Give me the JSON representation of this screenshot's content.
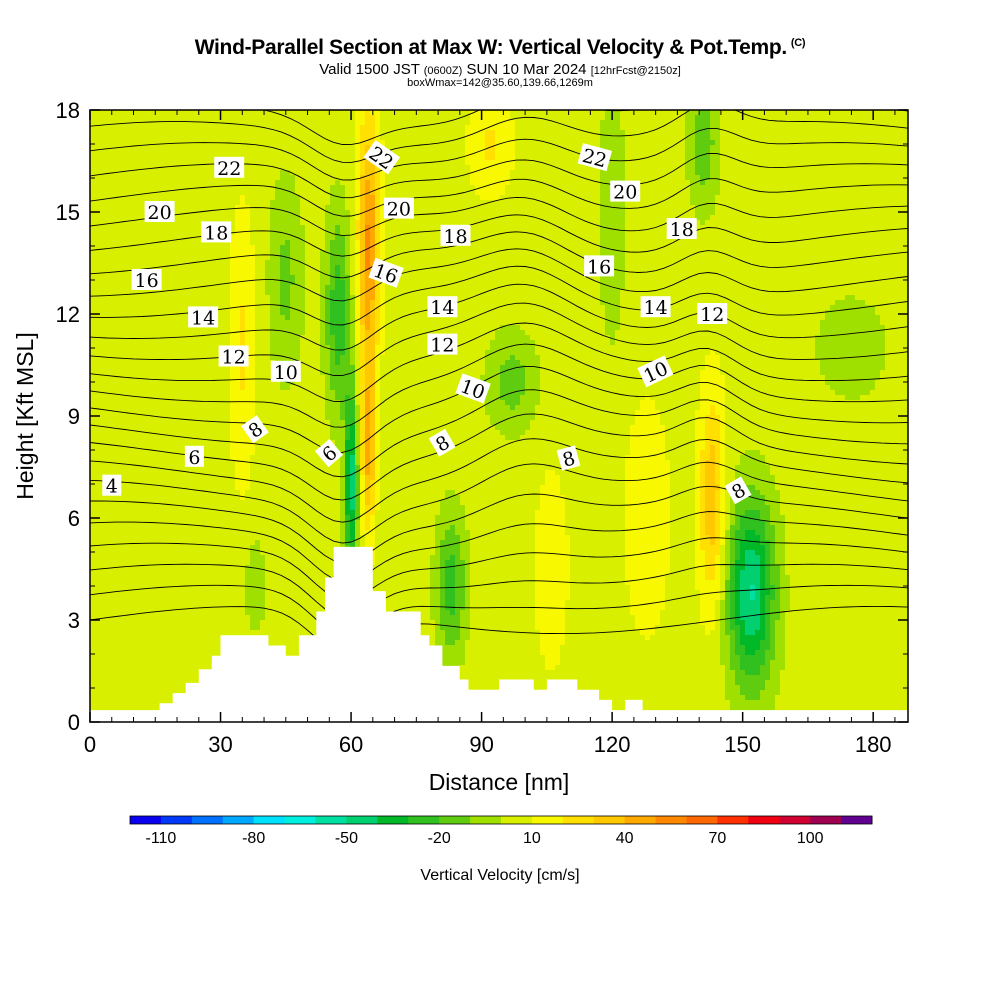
{
  "title": "Wind-Parallel Section at Max W: Vertical Velocity & Pot.Temp.",
  "copyright_mark": "(C)",
  "subtitle": "Valid 1500 JST (0600Z) SUN 10 Mar 2024 [12hrFcst@2150z]",
  "subtitle_parts": {
    "main": "Valid 1500 JST",
    "utc": "(0600Z)",
    "date": "SUN 10 Mar 2024",
    "fcst": "[12hrFcst@2150z]"
  },
  "info_line": "boxWmax=142@35.60,139.66,1269m",
  "chart_data": {
    "type": "heatmap",
    "xlabel": "Distance [nm]",
    "ylabel": "Height [Kft MSL]",
    "xlim": [
      0,
      188
    ],
    "ylim": [
      0,
      18
    ],
    "x_ticks": [
      0,
      30,
      60,
      90,
      120,
      150,
      180
    ],
    "y_ticks": [
      0,
      3,
      6,
      9,
      12,
      15,
      18
    ],
    "colorbar": {
      "label": "Vertical Velocity [cm/s]",
      "tick_labels": [
        "-110",
        "-80",
        "-50",
        "-20",
        "10",
        "40",
        "70",
        "100"
      ],
      "tick_values": [
        -110,
        -80,
        -50,
        -20,
        10,
        40,
        70,
        100
      ],
      "range": [
        -120,
        120
      ],
      "step": 10,
      "colors": [
        "#0a00f0",
        "#0038f8",
        "#0070ff",
        "#00a8ff",
        "#00e0ff",
        "#00f0e0",
        "#00e0a0",
        "#00d070",
        "#00b828",
        "#30c020",
        "#60cc10",
        "#a0e000",
        "#d8f000",
        "#f8f800",
        "#ffe000",
        "#ffc800",
        "#ffa800",
        "#ff8800",
        "#ff6800",
        "#ff3000",
        "#f00010",
        "#d00030",
        "#a00050",
        "#600090"
      ]
    },
    "filled_field": "Vertical Velocity [cm/s]",
    "contour_field": "Pot.Temp.",
    "contour_labels": [
      {
        "text": "4",
        "x": 5,
        "y": 6.95,
        "rot": 0
      },
      {
        "text": "6",
        "x": 24,
        "y": 7.8,
        "rot": 0
      },
      {
        "text": "8",
        "x": 38,
        "y": 8.6,
        "rot": -35
      },
      {
        "text": "10",
        "x": 45,
        "y": 10.3,
        "rot": 0
      },
      {
        "text": "12",
        "x": 33,
        "y": 10.75,
        "rot": 0
      },
      {
        "text": "14",
        "x": 26,
        "y": 11.9,
        "rot": 0
      },
      {
        "text": "16",
        "x": 13,
        "y": 13.0,
        "rot": 0
      },
      {
        "text": "18",
        "x": 29,
        "y": 14.4,
        "rot": 0
      },
      {
        "text": "20",
        "x": 16,
        "y": 15.0,
        "rot": 0
      },
      {
        "text": "22",
        "x": 32,
        "y": 16.3,
        "rot": 0
      },
      {
        "text": "6",
        "x": 55,
        "y": 7.9,
        "rot": -40
      },
      {
        "text": "16",
        "x": 68,
        "y": 13.2,
        "rot": 20
      },
      {
        "text": "20",
        "x": 71,
        "y": 15.1,
        "rot": 0
      },
      {
        "text": "22",
        "x": 67,
        "y": 16.6,
        "rot": 35
      },
      {
        "text": "8",
        "x": 81,
        "y": 8.2,
        "rot": -30
      },
      {
        "text": "10",
        "x": 88,
        "y": 9.8,
        "rot": 20
      },
      {
        "text": "12",
        "x": 81,
        "y": 11.1,
        "rot": 0
      },
      {
        "text": "14",
        "x": 81,
        "y": 12.2,
        "rot": 0
      },
      {
        "text": "18",
        "x": 84,
        "y": 14.3,
        "rot": 0
      },
      {
        "text": "8",
        "x": 110,
        "y": 7.75,
        "rot": -15
      },
      {
        "text": "16",
        "x": 117,
        "y": 13.4,
        "rot": 0
      },
      {
        "text": "10",
        "x": 130,
        "y": 10.3,
        "rot": -25
      },
      {
        "text": "14",
        "x": 130,
        "y": 12.2,
        "rot": 0
      },
      {
        "text": "12",
        "x": 143,
        "y": 12.0,
        "rot": 0
      },
      {
        "text": "18",
        "x": 136,
        "y": 14.5,
        "rot": 0
      },
      {
        "text": "20",
        "x": 123,
        "y": 15.6,
        "rot": 0
      },
      {
        "text": "22",
        "x": 116,
        "y": 16.6,
        "rot": 15
      },
      {
        "text": "8",
        "x": 149,
        "y": 6.8,
        "rot": -30
      }
    ],
    "terrain": [
      [
        0,
        0.35
      ],
      [
        16,
        0.35
      ],
      [
        16,
        0.55
      ],
      [
        19,
        0.55
      ],
      [
        19,
        0.85
      ],
      [
        22,
        0.85
      ],
      [
        22,
        1.15
      ],
      [
        25,
        1.15
      ],
      [
        25,
        1.55
      ],
      [
        28,
        1.55
      ],
      [
        28,
        1.95
      ],
      [
        30,
        1.95
      ],
      [
        30,
        2.55
      ],
      [
        41,
        2.55
      ],
      [
        41,
        2.25
      ],
      [
        45,
        2.25
      ],
      [
        45,
        1.95
      ],
      [
        48,
        1.95
      ],
      [
        48,
        2.55
      ],
      [
        52,
        2.55
      ],
      [
        52,
        3.25
      ],
      [
        54,
        3.25
      ],
      [
        54,
        4.25
      ],
      [
        56,
        4.25
      ],
      [
        56,
        5.15
      ],
      [
        65,
        5.15
      ],
      [
        65,
        3.85
      ],
      [
        68,
        3.85
      ],
      [
        68,
        3.25
      ],
      [
        76,
        3.25
      ],
      [
        76,
        2.55
      ],
      [
        78,
        2.55
      ],
      [
        78,
        2.25
      ],
      [
        81,
        2.25
      ],
      [
        81,
        1.65
      ],
      [
        85,
        1.65
      ],
      [
        85,
        1.25
      ],
      [
        87,
        1.25
      ],
      [
        87,
        0.95
      ],
      [
        94,
        0.95
      ],
      [
        94,
        1.25
      ],
      [
        102,
        1.25
      ],
      [
        102,
        0.95
      ],
      [
        105,
        0.95
      ],
      [
        105,
        1.25
      ],
      [
        112,
        1.25
      ],
      [
        112,
        0.95
      ],
      [
        117,
        0.95
      ],
      [
        117,
        0.65
      ],
      [
        120,
        0.65
      ],
      [
        120,
        0.35
      ],
      [
        123,
        0.35
      ],
      [
        123,
        0.65
      ],
      [
        127,
        0.65
      ],
      [
        127,
        0.35
      ],
      [
        188,
        0.35
      ]
    ],
    "features": [
      {
        "x": 143,
        "y": 6.5,
        "w": 3.2,
        "sx": 3.0,
        "sy": 3.2
      },
      {
        "x": 152,
        "y": 3.8,
        "w": -5.6,
        "sx": 5.5,
        "sy": 2.8
      },
      {
        "x": 60,
        "y": 7.0,
        "w": -5.2,
        "sx": 1.5,
        "sy": 2.8
      },
      {
        "x": 64,
        "y": 14.0,
        "w": 4.6,
        "sx": 2.5,
        "sy": 3.8
      },
      {
        "x": 64,
        "y": 8.0,
        "w": 3.6,
        "sx": 1.6,
        "sy": 2.5
      },
      {
        "x": 57,
        "y": 12.0,
        "w": -3.2,
        "sx": 3.0,
        "sy": 3.0
      },
      {
        "x": 83,
        "y": 4.0,
        "w": -3.0,
        "sx": 3.5,
        "sy": 2.2
      },
      {
        "x": 141,
        "y": 17.0,
        "w": -2.2,
        "sx": 3.5,
        "sy": 2.0
      },
      {
        "x": 97,
        "y": 10.0,
        "w": -2.0,
        "sx": 6.0,
        "sy": 1.5
      },
      {
        "x": 45,
        "y": 13.0,
        "w": -1.8,
        "sx": 4.0,
        "sy": 3.0
      },
      {
        "x": 175,
        "y": 11.0,
        "w": -1.5,
        "sx": 8.0,
        "sy": 1.5
      },
      {
        "x": 35,
        "y": 11.0,
        "w": 1.6,
        "sx": 3.0,
        "sy": 4.0
      },
      {
        "x": 92,
        "y": 17.0,
        "w": 1.6,
        "sx": 5.0,
        "sy": 1.5
      },
      {
        "x": 128,
        "y": 6.0,
        "w": 1.0,
        "sx": 6.0,
        "sy": 4.0
      },
      {
        "x": 106,
        "y": 4.5,
        "w": 1.2,
        "sx": 4.0,
        "sy": 3.0
      },
      {
        "x": 120,
        "y": 15.0,
        "w": -1.5,
        "sx": 3.0,
        "sy": 4.0
      },
      {
        "x": 38,
        "y": 4.0,
        "w": -1.3,
        "sx": 2.5,
        "sy": 1.5
      }
    ]
  }
}
